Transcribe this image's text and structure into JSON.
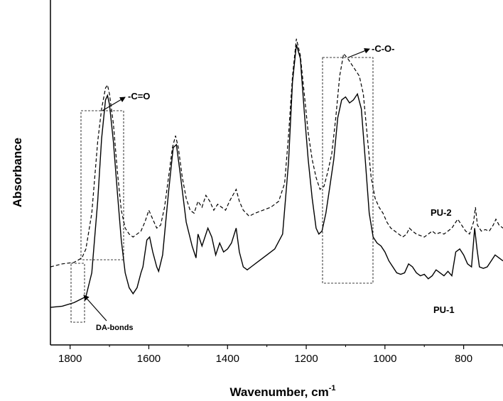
{
  "chart_data": {
    "type": "line",
    "title": "",
    "xlabel": "Wavenumber, cm",
    "xlabel_superscript": "-1",
    "ylabel": "Absorbance",
    "xlim": [
      1850,
      700
    ],
    "ylim": [
      0,
      1
    ],
    "x_reversed": true,
    "x_ticks": [
      1800,
      1600,
      1400,
      1200,
      1000,
      800
    ],
    "y_ticks_shown": false,
    "grid": false,
    "series": [
      {
        "name": "PU-1",
        "line_style": "solid",
        "points": [
          [
            1850,
            0.064
          ],
          [
            1820,
            0.068
          ],
          [
            1790,
            0.08
          ],
          [
            1760,
            0.1
          ],
          [
            1745,
            0.18
          ],
          [
            1730,
            0.42
          ],
          [
            1720,
            0.63
          ],
          [
            1710,
            0.76
          ],
          [
            1705,
            0.775
          ],
          [
            1700,
            0.745
          ],
          [
            1690,
            0.62
          ],
          [
            1680,
            0.45
          ],
          [
            1670,
            0.29
          ],
          [
            1660,
            0.18
          ],
          [
            1650,
            0.13
          ],
          [
            1640,
            0.11
          ],
          [
            1630,
            0.13
          ],
          [
            1620,
            0.18
          ],
          [
            1615,
            0.2
          ],
          [
            1605,
            0.29
          ],
          [
            1598,
            0.3
          ],
          [
            1590,
            0.25
          ],
          [
            1580,
            0.2
          ],
          [
            1575,
            0.185
          ],
          [
            1565,
            0.24
          ],
          [
            1550,
            0.45
          ],
          [
            1538,
            0.6
          ],
          [
            1530,
            0.61
          ],
          [
            1520,
            0.51
          ],
          [
            1505,
            0.35
          ],
          [
            1490,
            0.27
          ],
          [
            1480,
            0.23
          ],
          [
            1475,
            0.31
          ],
          [
            1465,
            0.27
          ],
          [
            1450,
            0.33
          ],
          [
            1440,
            0.3
          ],
          [
            1430,
            0.24
          ],
          [
            1420,
            0.28
          ],
          [
            1410,
            0.25
          ],
          [
            1400,
            0.26
          ],
          [
            1390,
            0.28
          ],
          [
            1378,
            0.33
          ],
          [
            1370,
            0.25
          ],
          [
            1360,
            0.2
          ],
          [
            1350,
            0.19
          ],
          [
            1340,
            0.2
          ],
          [
            1320,
            0.22
          ],
          [
            1300,
            0.24
          ],
          [
            1280,
            0.26
          ],
          [
            1260,
            0.31
          ],
          [
            1245,
            0.55
          ],
          [
            1235,
            0.82
          ],
          [
            1225,
            0.945
          ],
          [
            1215,
            0.9
          ],
          [
            1205,
            0.72
          ],
          [
            1195,
            0.56
          ],
          [
            1185,
            0.43
          ],
          [
            1175,
            0.33
          ],
          [
            1168,
            0.31
          ],
          [
            1160,
            0.32
          ],
          [
            1150,
            0.38
          ],
          [
            1140,
            0.47
          ],
          [
            1130,
            0.56
          ],
          [
            1120,
            0.7
          ],
          [
            1110,
            0.76
          ],
          [
            1100,
            0.77
          ],
          [
            1090,
            0.75
          ],
          [
            1080,
            0.76
          ],
          [
            1070,
            0.78
          ],
          [
            1060,
            0.73
          ],
          [
            1050,
            0.56
          ],
          [
            1040,
            0.38
          ],
          [
            1030,
            0.3
          ],
          [
            1020,
            0.28
          ],
          [
            1010,
            0.27
          ],
          [
            1000,
            0.25
          ],
          [
            990,
            0.22
          ],
          [
            980,
            0.2
          ],
          [
            970,
            0.18
          ],
          [
            960,
            0.175
          ],
          [
            950,
            0.18
          ],
          [
            940,
            0.21
          ],
          [
            930,
            0.2
          ],
          [
            920,
            0.18
          ],
          [
            910,
            0.17
          ],
          [
            900,
            0.175
          ],
          [
            890,
            0.16
          ],
          [
            880,
            0.17
          ],
          [
            870,
            0.19
          ],
          [
            860,
            0.18
          ],
          [
            850,
            0.17
          ],
          [
            840,
            0.185
          ],
          [
            830,
            0.17
          ],
          [
            820,
            0.25
          ],
          [
            810,
            0.26
          ],
          [
            800,
            0.24
          ],
          [
            790,
            0.21
          ],
          [
            780,
            0.2
          ],
          [
            772,
            0.33
          ],
          [
            766,
            0.26
          ],
          [
            760,
            0.2
          ],
          [
            750,
            0.195
          ],
          [
            740,
            0.2
          ],
          [
            730,
            0.22
          ],
          [
            720,
            0.24
          ],
          [
            710,
            0.23
          ],
          [
            700,
            0.22
          ]
        ]
      },
      {
        "name": "PU-2",
        "line_style": "dashed",
        "points": [
          [
            1850,
            0.2
          ],
          [
            1820,
            0.21
          ],
          [
            1790,
            0.215
          ],
          [
            1770,
            0.23
          ],
          [
            1760,
            0.26
          ],
          [
            1745,
            0.38
          ],
          [
            1730,
            0.62
          ],
          [
            1720,
            0.73
          ],
          [
            1710,
            0.8
          ],
          [
            1705,
            0.81
          ],
          [
            1700,
            0.78
          ],
          [
            1690,
            0.68
          ],
          [
            1680,
            0.52
          ],
          [
            1670,
            0.39
          ],
          [
            1660,
            0.33
          ],
          [
            1650,
            0.31
          ],
          [
            1640,
            0.3
          ],
          [
            1630,
            0.31
          ],
          [
            1620,
            0.32
          ],
          [
            1610,
            0.35
          ],
          [
            1600,
            0.39
          ],
          [
            1590,
            0.36
          ],
          [
            1580,
            0.33
          ],
          [
            1570,
            0.34
          ],
          [
            1560,
            0.4
          ],
          [
            1550,
            0.5
          ],
          [
            1540,
            0.6
          ],
          [
            1532,
            0.64
          ],
          [
            1525,
            0.6
          ],
          [
            1515,
            0.5
          ],
          [
            1505,
            0.43
          ],
          [
            1495,
            0.39
          ],
          [
            1485,
            0.38
          ],
          [
            1475,
            0.42
          ],
          [
            1465,
            0.4
          ],
          [
            1455,
            0.44
          ],
          [
            1445,
            0.42
          ],
          [
            1435,
            0.39
          ],
          [
            1425,
            0.41
          ],
          [
            1415,
            0.4
          ],
          [
            1405,
            0.39
          ],
          [
            1395,
            0.42
          ],
          [
            1378,
            0.46
          ],
          [
            1370,
            0.42
          ],
          [
            1360,
            0.39
          ],
          [
            1345,
            0.37
          ],
          [
            1330,
            0.38
          ],
          [
            1310,
            0.39
          ],
          [
            1290,
            0.4
          ],
          [
            1270,
            0.42
          ],
          [
            1255,
            0.48
          ],
          [
            1245,
            0.64
          ],
          [
            1235,
            0.84
          ],
          [
            1225,
            0.965
          ],
          [
            1215,
            0.91
          ],
          [
            1205,
            0.78
          ],
          [
            1195,
            0.65
          ],
          [
            1185,
            0.56
          ],
          [
            1175,
            0.5
          ],
          [
            1165,
            0.46
          ],
          [
            1155,
            0.47
          ],
          [
            1145,
            0.52
          ],
          [
            1135,
            0.58
          ],
          [
            1125,
            0.7
          ],
          [
            1115,
            0.84
          ],
          [
            1105,
            0.915
          ],
          [
            1095,
            0.9
          ],
          [
            1085,
            0.88
          ],
          [
            1075,
            0.86
          ],
          [
            1065,
            0.84
          ],
          [
            1055,
            0.78
          ],
          [
            1045,
            0.64
          ],
          [
            1035,
            0.5
          ],
          [
            1025,
            0.43
          ],
          [
            1015,
            0.4
          ],
          [
            1005,
            0.38
          ],
          [
            995,
            0.35
          ],
          [
            985,
            0.33
          ],
          [
            975,
            0.32
          ],
          [
            965,
            0.31
          ],
          [
            955,
            0.3
          ],
          [
            945,
            0.31
          ],
          [
            938,
            0.33
          ],
          [
            930,
            0.32
          ],
          [
            920,
            0.31
          ],
          [
            910,
            0.305
          ],
          [
            900,
            0.3
          ],
          [
            890,
            0.31
          ],
          [
            880,
            0.32
          ],
          [
            870,
            0.31
          ],
          [
            860,
            0.315
          ],
          [
            850,
            0.31
          ],
          [
            840,
            0.32
          ],
          [
            830,
            0.33
          ],
          [
            820,
            0.35
          ],
          [
            815,
            0.36
          ],
          [
            805,
            0.34
          ],
          [
            795,
            0.32
          ],
          [
            785,
            0.31
          ],
          [
            775,
            0.35
          ],
          [
            770,
            0.4
          ],
          [
            765,
            0.34
          ],
          [
            755,
            0.32
          ],
          [
            745,
            0.325
          ],
          [
            735,
            0.32
          ],
          [
            725,
            0.34
          ],
          [
            718,
            0.36
          ],
          [
            710,
            0.34
          ],
          [
            700,
            0.33
          ]
        ]
      }
    ],
    "annotations": [
      {
        "id": "co-double",
        "text": "-C=O"
      },
      {
        "id": "co-single",
        "text": "-C-O-"
      },
      {
        "id": "da-bonds",
        "text": "DA-bonds"
      },
      {
        "id": "pu2-label",
        "text": "PU-2"
      },
      {
        "id": "pu1-label",
        "text": "PU-1"
      }
    ]
  }
}
